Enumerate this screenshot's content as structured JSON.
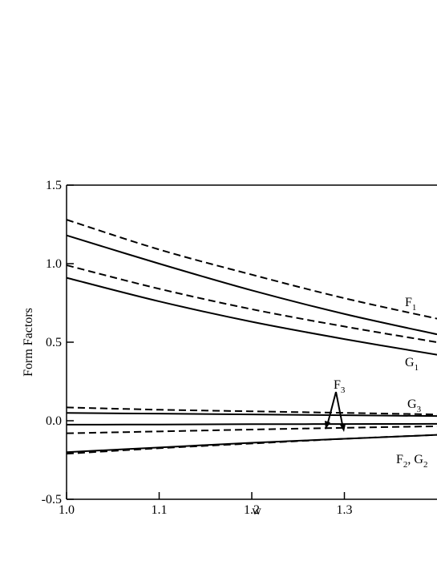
{
  "chart_data": {
    "type": "line",
    "x_label": "w",
    "y_label": "Form Factors",
    "x": [
      1.0,
      1.1,
      1.2,
      1.3,
      1.4
    ],
    "series": [
      {
        "color": "#000000",
        "dash": true,
        "values": [
          1.28,
          1.09,
          0.93,
          0.78,
          0.65
        ]
      },
      {
        "color": "#000000",
        "dash": false,
        "values": [
          1.18,
          1.0,
          0.83,
          0.68,
          0.55
        ]
      },
      {
        "color": "#000000",
        "dash": true,
        "values": [
          0.99,
          0.84,
          0.71,
          0.6,
          0.5
        ]
      },
      {
        "color": "#000000",
        "dash": false,
        "values": [
          0.91,
          0.76,
          0.63,
          0.52,
          0.42
        ]
      },
      {
        "color": "#000000",
        "dash": true,
        "values": [
          0.085,
          0.07,
          0.06,
          0.05,
          0.04
        ]
      },
      {
        "color": "#000000",
        "dash": false,
        "values": [
          0.05,
          0.045,
          0.04,
          0.035,
          0.03
        ]
      },
      {
        "color": "#000000",
        "dash": false,
        "values": [
          -0.025,
          -0.024,
          -0.022,
          -0.021,
          -0.02
        ]
      },
      {
        "color": "#000000",
        "dash": true,
        "values": [
          -0.08,
          -0.068,
          -0.056,
          -0.045,
          -0.035
        ]
      },
      {
        "color": "#000000",
        "dash": false,
        "values": [
          -0.2,
          -0.17,
          -0.14,
          -0.115,
          -0.09
        ]
      },
      {
        "color": "#000000",
        "dash": true,
        "values": [
          -0.21,
          -0.175,
          -0.145,
          -0.115,
          -0.09
        ]
      }
    ],
    "annotations": [
      {
        "parts": [
          "F",
          "1"
        ]
      },
      {
        "parts": [
          "G",
          "1"
        ]
      },
      {
        "parts": [
          "F",
          "3"
        ]
      },
      {
        "parts": [
          "G",
          "3"
        ]
      },
      {
        "parts": [
          "F",
          "2",
          ", G",
          "2"
        ]
      }
    ],
    "xlim": [
      1.0,
      1.4
    ],
    "ylim": [
      -0.5,
      1.5
    ],
    "xticks": [
      {
        "value": 1.0,
        "label": "1.0"
      },
      1.1,
      1.2,
      1.3
    ],
    "yticks": [
      -0.5,
      {
        "value": 0.0,
        "label": "0.0"
      },
      0.5,
      {
        "value": 1.0,
        "label": "1.0"
      },
      1.5
    ],
    "grid": false
  }
}
